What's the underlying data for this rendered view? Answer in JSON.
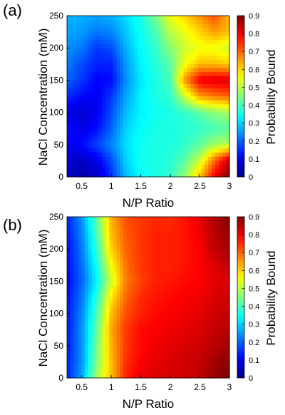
{
  "chart_data": [
    {
      "panel_label": "(a)",
      "type": "heatmap",
      "xlabel": "N/P Ratio",
      "ylabel": "NaCl Concentration (mM)",
      "colorbar_label": "Probability Bound",
      "colormap": "jet",
      "x_ticks": [
        "0.5",
        "1",
        "1.5",
        "2",
        "2.5",
        "3"
      ],
      "y_ticks": [
        "0",
        "50",
        "100",
        "150",
        "200",
        "250"
      ],
      "colorbar_ticks": [
        "0",
        "0.1",
        "0.2",
        "0.3",
        "0.4",
        "0.5",
        "0.6",
        "0.7",
        "0.8",
        "0.9"
      ],
      "xlim": [
        0.25,
        3
      ],
      "ylim": [
        0,
        250
      ],
      "clim": [
        0,
        0.9
      ],
      "x": [
        0.25,
        0.5,
        0.75,
        1.0,
        1.25,
        1.5,
        1.75,
        2.0,
        2.25,
        2.5,
        2.75,
        3.0
      ],
      "y": [
        0,
        25,
        50,
        75,
        100,
        125,
        150,
        175,
        200,
        225,
        250
      ],
      "z": [
        [
          0.06,
          0.04,
          0.06,
          0.15,
          0.28,
          0.34,
          0.36,
          0.38,
          0.47,
          0.62,
          0.8,
          0.9
        ],
        [
          0.07,
          0.06,
          0.09,
          0.18,
          0.3,
          0.35,
          0.36,
          0.37,
          0.42,
          0.52,
          0.7,
          0.85
        ],
        [
          0.1,
          0.12,
          0.17,
          0.23,
          0.31,
          0.35,
          0.36,
          0.36,
          0.38,
          0.42,
          0.48,
          0.5
        ],
        [
          0.13,
          0.09,
          0.12,
          0.2,
          0.3,
          0.34,
          0.36,
          0.36,
          0.37,
          0.38,
          0.4,
          0.42
        ],
        [
          0.09,
          0.07,
          0.1,
          0.18,
          0.28,
          0.33,
          0.35,
          0.36,
          0.38,
          0.42,
          0.46,
          0.48
        ],
        [
          0.15,
          0.12,
          0.1,
          0.16,
          0.26,
          0.33,
          0.36,
          0.38,
          0.52,
          0.65,
          0.68,
          0.7
        ],
        [
          0.2,
          0.16,
          0.11,
          0.12,
          0.24,
          0.32,
          0.36,
          0.4,
          0.66,
          0.8,
          0.82,
          0.82
        ],
        [
          0.22,
          0.18,
          0.14,
          0.14,
          0.25,
          0.33,
          0.37,
          0.42,
          0.55,
          0.62,
          0.62,
          0.6
        ],
        [
          0.24,
          0.22,
          0.16,
          0.18,
          0.27,
          0.34,
          0.38,
          0.46,
          0.52,
          0.55,
          0.55,
          0.52
        ],
        [
          0.26,
          0.25,
          0.22,
          0.23,
          0.29,
          0.35,
          0.4,
          0.5,
          0.55,
          0.6,
          0.65,
          0.62
        ],
        [
          0.27,
          0.27,
          0.26,
          0.27,
          0.31,
          0.36,
          0.44,
          0.55,
          0.6,
          0.66,
          0.72,
          0.62
        ]
      ]
    },
    {
      "panel_label": "(b)",
      "type": "heatmap",
      "xlabel": "N/P Ratio",
      "ylabel": "NaCl Concentration (mM)",
      "colorbar_label": "Probability Bound",
      "colormap": "jet",
      "x_ticks": [
        "0.5",
        "1",
        "1.5",
        "2",
        "2.5",
        "3"
      ],
      "y_ticks": [
        "0",
        "50",
        "100",
        "150",
        "200",
        "250"
      ],
      "colorbar_ticks": [
        "0",
        "0.1",
        "0.2",
        "0.3",
        "0.4",
        "0.5",
        "0.6",
        "0.7",
        "0.8",
        "0.9"
      ],
      "xlim": [
        0.25,
        3
      ],
      "ylim": [
        0,
        250
      ],
      "clim": [
        0,
        0.9
      ],
      "x": [
        0.25,
        0.5,
        0.75,
        1.0,
        1.25,
        1.5,
        1.75,
        2.0,
        2.25,
        2.5,
        2.75,
        3.0
      ],
      "y": [
        0,
        25,
        50,
        75,
        100,
        125,
        150,
        175,
        200,
        225,
        250
      ],
      "z": [
        [
          0.14,
          0.26,
          0.48,
          0.62,
          0.76,
          0.8,
          0.82,
          0.82,
          0.83,
          0.84,
          0.88,
          0.9
        ],
        [
          0.14,
          0.24,
          0.45,
          0.62,
          0.75,
          0.79,
          0.81,
          0.82,
          0.83,
          0.84,
          0.87,
          0.89
        ],
        [
          0.13,
          0.24,
          0.44,
          0.63,
          0.74,
          0.78,
          0.8,
          0.81,
          0.82,
          0.83,
          0.85,
          0.87
        ],
        [
          0.13,
          0.24,
          0.42,
          0.64,
          0.74,
          0.78,
          0.79,
          0.8,
          0.81,
          0.82,
          0.84,
          0.85
        ],
        [
          0.13,
          0.23,
          0.4,
          0.62,
          0.72,
          0.76,
          0.78,
          0.79,
          0.8,
          0.81,
          0.83,
          0.84
        ],
        [
          0.12,
          0.22,
          0.37,
          0.58,
          0.7,
          0.75,
          0.77,
          0.78,
          0.79,
          0.8,
          0.82,
          0.83
        ],
        [
          0.11,
          0.2,
          0.33,
          0.52,
          0.68,
          0.73,
          0.76,
          0.77,
          0.78,
          0.79,
          0.81,
          0.82
        ],
        [
          0.12,
          0.21,
          0.35,
          0.56,
          0.69,
          0.74,
          0.76,
          0.76,
          0.77,
          0.79,
          0.82,
          0.84
        ],
        [
          0.12,
          0.22,
          0.38,
          0.6,
          0.7,
          0.74,
          0.76,
          0.76,
          0.77,
          0.79,
          0.84,
          0.87
        ],
        [
          0.13,
          0.23,
          0.4,
          0.62,
          0.71,
          0.74,
          0.76,
          0.76,
          0.77,
          0.8,
          0.85,
          0.88
        ],
        [
          0.14,
          0.24,
          0.42,
          0.63,
          0.72,
          0.74,
          0.75,
          0.75,
          0.77,
          0.81,
          0.86,
          0.9
        ]
      ]
    }
  ]
}
